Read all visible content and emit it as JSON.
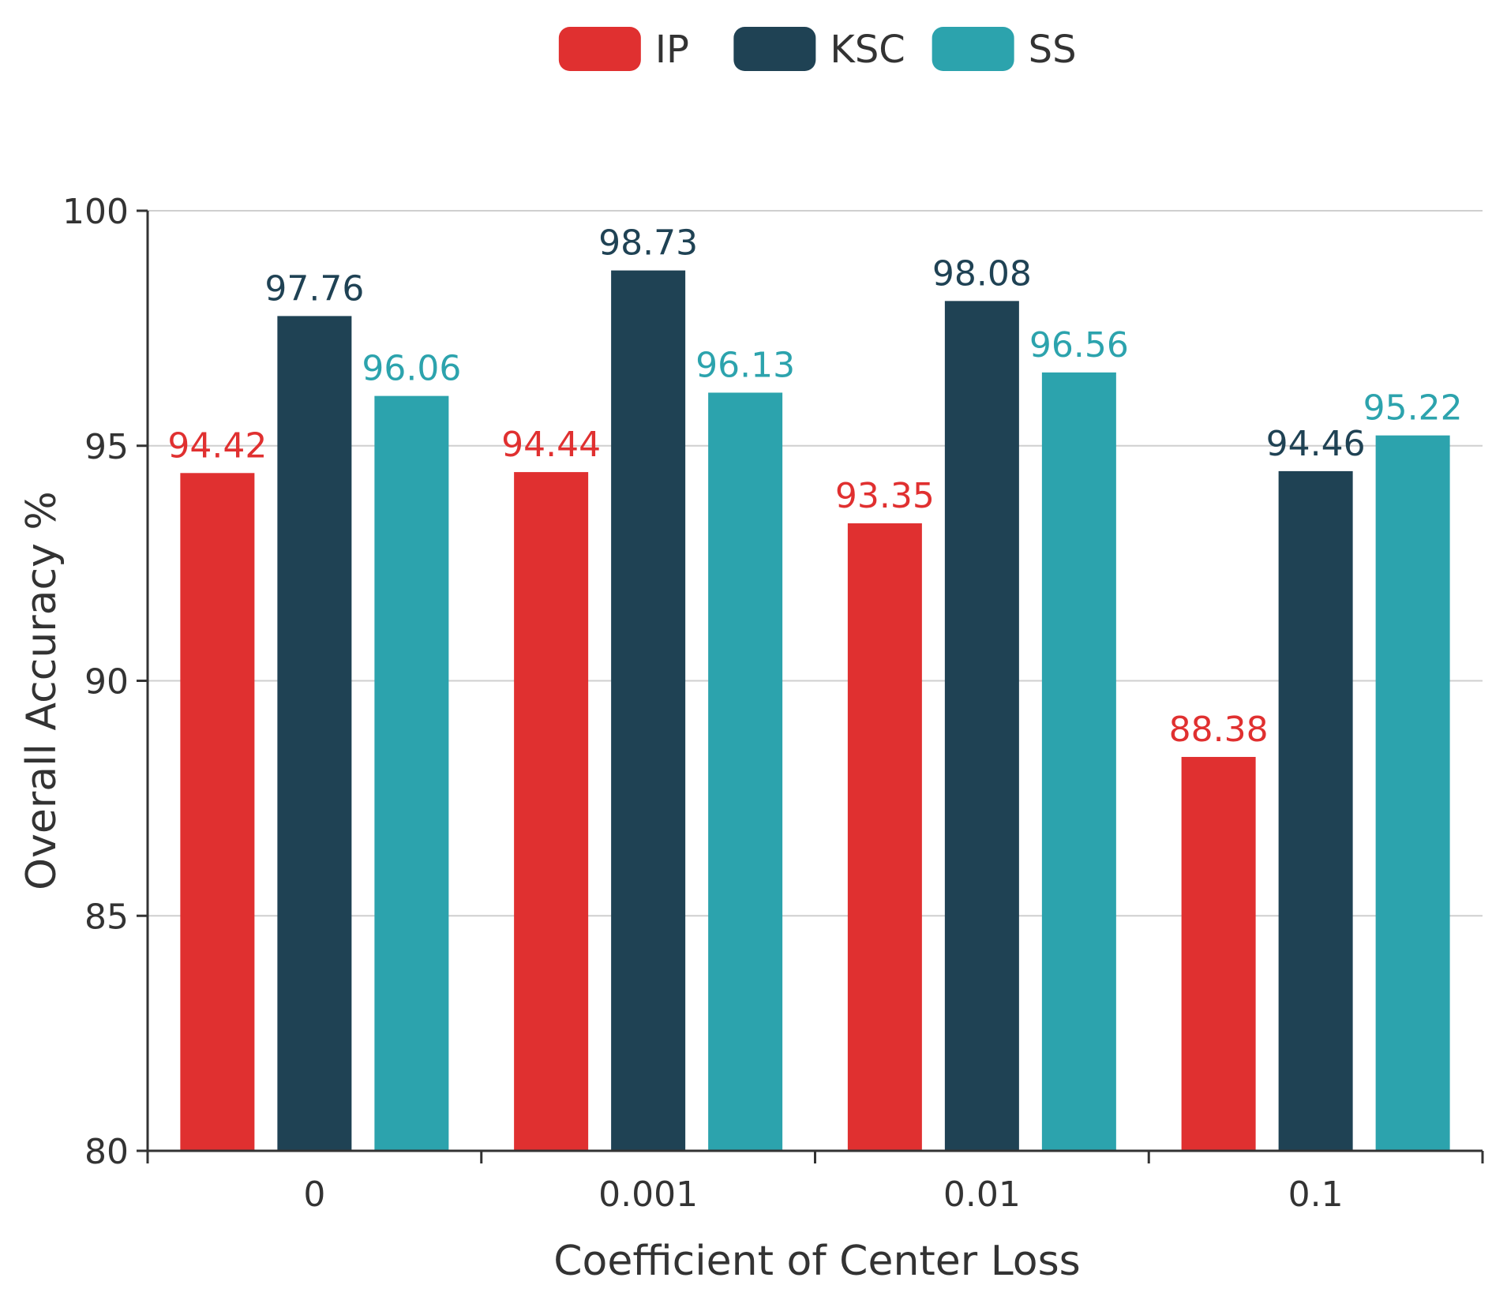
{
  "chart_data": {
    "type": "bar",
    "title": "",
    "xlabel": "Coefficient of Center Loss",
    "ylabel": "Overall Accuracy %",
    "categories": [
      "0",
      "0.001",
      "0.01",
      "0.1"
    ],
    "ylim": [
      80,
      100
    ],
    "yticks": [
      "80",
      "85",
      "90",
      "95",
      "100"
    ],
    "grid": true,
    "legend_position": "top-center",
    "series": [
      {
        "name": "IP",
        "color": "#e03030",
        "values": [
          94.42,
          94.44,
          93.35,
          88.38
        ],
        "labels": [
          "94.42",
          "94.44",
          "93.35",
          "88.38"
        ]
      },
      {
        "name": "KSC",
        "color": "#1f4254",
        "values": [
          97.76,
          98.73,
          98.08,
          94.46
        ],
        "labels": [
          "97.76",
          "98.73",
          "98.08",
          "94.46"
        ]
      },
      {
        "name": "SS",
        "color": "#2ca3ad",
        "values": [
          96.06,
          96.13,
          96.56,
          95.22
        ],
        "labels": [
          "96.06",
          "96.13",
          "96.56",
          "95.22"
        ]
      }
    ]
  }
}
